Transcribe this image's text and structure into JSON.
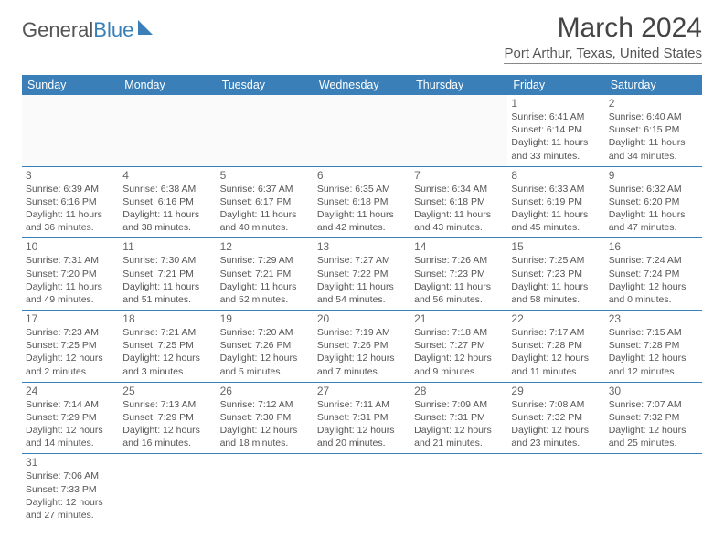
{
  "logo": {
    "text1": "General",
    "text2": "Blue"
  },
  "title": "March 2024",
  "location": "Port Arthur, Texas, United States",
  "header_color": "#3a7fb8",
  "day_headers": [
    "Sunday",
    "Monday",
    "Tuesday",
    "Wednesday",
    "Thursday",
    "Friday",
    "Saturday"
  ],
  "weeks": [
    [
      {
        "n": "",
        "sr": "",
        "ss": "",
        "dl": ""
      },
      {
        "n": "",
        "sr": "",
        "ss": "",
        "dl": ""
      },
      {
        "n": "",
        "sr": "",
        "ss": "",
        "dl": ""
      },
      {
        "n": "",
        "sr": "",
        "ss": "",
        "dl": ""
      },
      {
        "n": "",
        "sr": "",
        "ss": "",
        "dl": ""
      },
      {
        "n": "1",
        "sr": "Sunrise: 6:41 AM",
        "ss": "Sunset: 6:14 PM",
        "dl": "Daylight: 11 hours and 33 minutes."
      },
      {
        "n": "2",
        "sr": "Sunrise: 6:40 AM",
        "ss": "Sunset: 6:15 PM",
        "dl": "Daylight: 11 hours and 34 minutes."
      }
    ],
    [
      {
        "n": "3",
        "sr": "Sunrise: 6:39 AM",
        "ss": "Sunset: 6:16 PM",
        "dl": "Daylight: 11 hours and 36 minutes."
      },
      {
        "n": "4",
        "sr": "Sunrise: 6:38 AM",
        "ss": "Sunset: 6:16 PM",
        "dl": "Daylight: 11 hours and 38 minutes."
      },
      {
        "n": "5",
        "sr": "Sunrise: 6:37 AM",
        "ss": "Sunset: 6:17 PM",
        "dl": "Daylight: 11 hours and 40 minutes."
      },
      {
        "n": "6",
        "sr": "Sunrise: 6:35 AM",
        "ss": "Sunset: 6:18 PM",
        "dl": "Daylight: 11 hours and 42 minutes."
      },
      {
        "n": "7",
        "sr": "Sunrise: 6:34 AM",
        "ss": "Sunset: 6:18 PM",
        "dl": "Daylight: 11 hours and 43 minutes."
      },
      {
        "n": "8",
        "sr": "Sunrise: 6:33 AM",
        "ss": "Sunset: 6:19 PM",
        "dl": "Daylight: 11 hours and 45 minutes."
      },
      {
        "n": "9",
        "sr": "Sunrise: 6:32 AM",
        "ss": "Sunset: 6:20 PM",
        "dl": "Daylight: 11 hours and 47 minutes."
      }
    ],
    [
      {
        "n": "10",
        "sr": "Sunrise: 7:31 AM",
        "ss": "Sunset: 7:20 PM",
        "dl": "Daylight: 11 hours and 49 minutes."
      },
      {
        "n": "11",
        "sr": "Sunrise: 7:30 AM",
        "ss": "Sunset: 7:21 PM",
        "dl": "Daylight: 11 hours and 51 minutes."
      },
      {
        "n": "12",
        "sr": "Sunrise: 7:29 AM",
        "ss": "Sunset: 7:21 PM",
        "dl": "Daylight: 11 hours and 52 minutes."
      },
      {
        "n": "13",
        "sr": "Sunrise: 7:27 AM",
        "ss": "Sunset: 7:22 PM",
        "dl": "Daylight: 11 hours and 54 minutes."
      },
      {
        "n": "14",
        "sr": "Sunrise: 7:26 AM",
        "ss": "Sunset: 7:23 PM",
        "dl": "Daylight: 11 hours and 56 minutes."
      },
      {
        "n": "15",
        "sr": "Sunrise: 7:25 AM",
        "ss": "Sunset: 7:23 PM",
        "dl": "Daylight: 11 hours and 58 minutes."
      },
      {
        "n": "16",
        "sr": "Sunrise: 7:24 AM",
        "ss": "Sunset: 7:24 PM",
        "dl": "Daylight: 12 hours and 0 minutes."
      }
    ],
    [
      {
        "n": "17",
        "sr": "Sunrise: 7:23 AM",
        "ss": "Sunset: 7:25 PM",
        "dl": "Daylight: 12 hours and 2 minutes."
      },
      {
        "n": "18",
        "sr": "Sunrise: 7:21 AM",
        "ss": "Sunset: 7:25 PM",
        "dl": "Daylight: 12 hours and 3 minutes."
      },
      {
        "n": "19",
        "sr": "Sunrise: 7:20 AM",
        "ss": "Sunset: 7:26 PM",
        "dl": "Daylight: 12 hours and 5 minutes."
      },
      {
        "n": "20",
        "sr": "Sunrise: 7:19 AM",
        "ss": "Sunset: 7:26 PM",
        "dl": "Daylight: 12 hours and 7 minutes."
      },
      {
        "n": "21",
        "sr": "Sunrise: 7:18 AM",
        "ss": "Sunset: 7:27 PM",
        "dl": "Daylight: 12 hours and 9 minutes."
      },
      {
        "n": "22",
        "sr": "Sunrise: 7:17 AM",
        "ss": "Sunset: 7:28 PM",
        "dl": "Daylight: 12 hours and 11 minutes."
      },
      {
        "n": "23",
        "sr": "Sunrise: 7:15 AM",
        "ss": "Sunset: 7:28 PM",
        "dl": "Daylight: 12 hours and 12 minutes."
      }
    ],
    [
      {
        "n": "24",
        "sr": "Sunrise: 7:14 AM",
        "ss": "Sunset: 7:29 PM",
        "dl": "Daylight: 12 hours and 14 minutes."
      },
      {
        "n": "25",
        "sr": "Sunrise: 7:13 AM",
        "ss": "Sunset: 7:29 PM",
        "dl": "Daylight: 12 hours and 16 minutes."
      },
      {
        "n": "26",
        "sr": "Sunrise: 7:12 AM",
        "ss": "Sunset: 7:30 PM",
        "dl": "Daylight: 12 hours and 18 minutes."
      },
      {
        "n": "27",
        "sr": "Sunrise: 7:11 AM",
        "ss": "Sunset: 7:31 PM",
        "dl": "Daylight: 12 hours and 20 minutes."
      },
      {
        "n": "28",
        "sr": "Sunrise: 7:09 AM",
        "ss": "Sunset: 7:31 PM",
        "dl": "Daylight: 12 hours and 21 minutes."
      },
      {
        "n": "29",
        "sr": "Sunrise: 7:08 AM",
        "ss": "Sunset: 7:32 PM",
        "dl": "Daylight: 12 hours and 23 minutes."
      },
      {
        "n": "30",
        "sr": "Sunrise: 7:07 AM",
        "ss": "Sunset: 7:32 PM",
        "dl": "Daylight: 12 hours and 25 minutes."
      }
    ],
    [
      {
        "n": "31",
        "sr": "Sunrise: 7:06 AM",
        "ss": "Sunset: 7:33 PM",
        "dl": "Daylight: 12 hours and 27 minutes."
      },
      {
        "n": "",
        "sr": "",
        "ss": "",
        "dl": ""
      },
      {
        "n": "",
        "sr": "",
        "ss": "",
        "dl": ""
      },
      {
        "n": "",
        "sr": "",
        "ss": "",
        "dl": ""
      },
      {
        "n": "",
        "sr": "",
        "ss": "",
        "dl": ""
      },
      {
        "n": "",
        "sr": "",
        "ss": "",
        "dl": ""
      },
      {
        "n": "",
        "sr": "",
        "ss": "",
        "dl": ""
      }
    ]
  ]
}
